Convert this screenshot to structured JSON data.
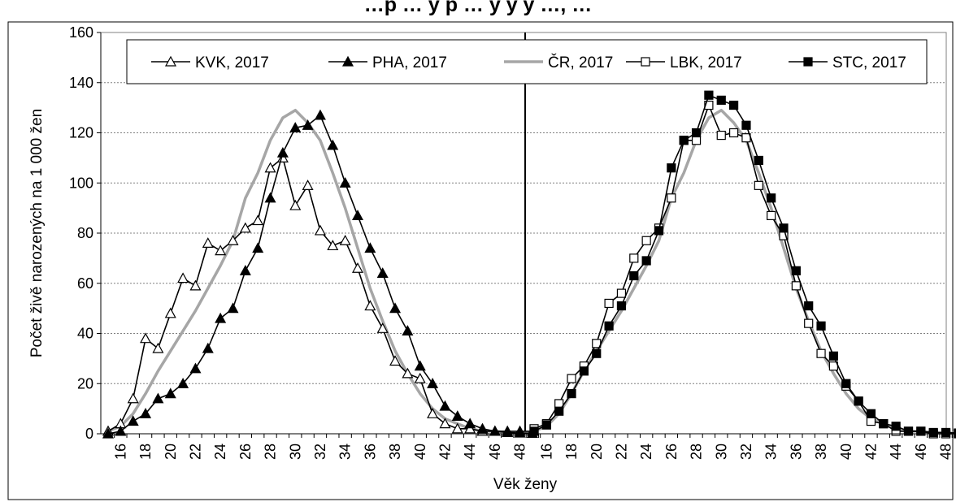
{
  "chart_data": {
    "type": "line",
    "title": "…p … y p … y y y …, …",
    "xlabel": "Věk ženy",
    "ylabel": "Počet živě narozených na 1 000 žen",
    "ylim": [
      0,
      160
    ],
    "yticks": [
      "0",
      "20",
      "40",
      "60",
      "80",
      "100",
      "120",
      "140",
      "160"
    ],
    "xticks": [
      "16",
      "18",
      "20",
      "22",
      "24",
      "26",
      "28",
      "30",
      "32",
      "34",
      "36",
      "38",
      "40",
      "42",
      "44",
      "46",
      "48"
    ],
    "grid": true,
    "legend_position": "top",
    "legend": [
      "KVK, 2017",
      "PHA, 2017",
      "ČR, 2017",
      "LBK, 2017",
      "STC, 2017"
    ],
    "panels": [
      {
        "x": [
          15,
          16,
          17,
          18,
          19,
          20,
          21,
          22,
          23,
          24,
          25,
          26,
          27,
          28,
          29,
          30,
          31,
          32,
          33,
          34,
          35,
          36,
          37,
          38,
          39,
          40,
          41,
          42,
          43,
          44,
          45,
          46,
          47,
          48,
          49
        ],
        "series": [
          {
            "name": "ČR, 2017",
            "color": "#a6a6a6",
            "marker": "none",
            "values": [
              1,
              3,
              8,
              16,
              25,
              33,
              41,
              49,
              58,
              67,
              77,
              94,
              104,
              117,
              126,
              129,
              124,
              117,
              104,
              90,
              74,
              58,
              45,
              33,
              24,
              16,
              10,
              6,
              4,
              2,
              1,
              1,
              0.5,
              0.3,
              0.2
            ]
          },
          {
            "name": "KVK, 2017",
            "color": "#000000",
            "marker": "triangle-open",
            "values": [
              1,
              4,
              14,
              38,
              34,
              48,
              62,
              59,
              76,
              73,
              77,
              82,
              85,
              106,
              110,
              91,
              99,
              81,
              75,
              77,
              66,
              51,
              42,
              29,
              24,
              22,
              8,
              4,
              2,
              2,
              1,
              1,
              1,
              1,
              1
            ]
          },
          {
            "name": "PHA, 2017",
            "color": "#000000",
            "marker": "triangle-filled",
            "values": [
              0,
              1,
              5,
              8,
              14,
              16,
              20,
              26,
              34,
              46,
              50,
              65,
              74,
              94,
              112,
              122,
              123,
              127,
              115,
              100,
              87,
              74,
              64,
              50,
              41,
              27,
              20,
              11,
              7,
              4,
              2,
              1,
              0.5,
              0.3,
              0.2
            ]
          }
        ]
      },
      {
        "x": [
          15,
          16,
          17,
          18,
          19,
          20,
          21,
          22,
          23,
          24,
          25,
          26,
          27,
          28,
          29,
          30,
          31,
          32,
          33,
          34,
          35,
          36,
          37,
          38,
          39,
          40,
          41,
          42,
          43,
          44,
          45,
          46,
          47,
          48,
          49
        ],
        "series": [
          {
            "name": "ČR, 2017",
            "color": "#a6a6a6",
            "marker": "none",
            "values": [
              1,
              3,
              8,
              16,
              25,
              33,
              41,
              49,
              58,
              67,
              77,
              94,
              104,
              117,
              126,
              129,
              124,
              117,
              104,
              90,
              74,
              58,
              45,
              33,
              24,
              16,
              10,
              6,
              4,
              2,
              1,
              1,
              0.5,
              0.3,
              0.2
            ]
          },
          {
            "name": "LBK, 2017",
            "color": "#000000",
            "marker": "square-open",
            "values": [
              2,
              4,
              12,
              22,
              27,
              36,
              52,
              56,
              70,
              77,
              82,
              94,
              117,
              117,
              131,
              119,
              120,
              118,
              99,
              87,
              79,
              59,
              44,
              32,
              27,
              19,
              13,
              5,
              4,
              1,
              1,
              1,
              0,
              0,
              0
            ]
          },
          {
            "name": "STC, 2017",
            "color": "#000000",
            "marker": "square-filled",
            "values": [
              1,
              3.5,
              9,
              16,
              25,
              32,
              43,
              51,
              63,
              69,
              81,
              106,
              117,
              120,
              135,
              133,
              131,
              123,
              109,
              94,
              82,
              65,
              51,
              43,
              31,
              20,
              13,
              8,
              4,
              3,
              1,
              1,
              0.5,
              0.5,
              0.3
            ]
          }
        ]
      }
    ]
  }
}
